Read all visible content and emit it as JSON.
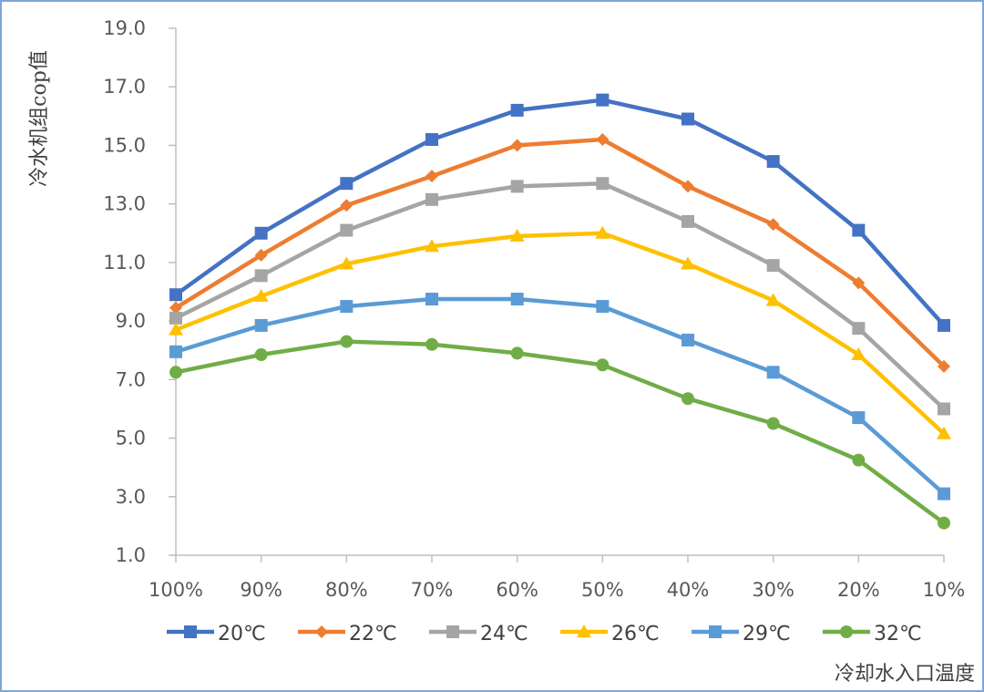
{
  "chart_data": {
    "type": "line",
    "title": "",
    "xlabel": "冷却水入口温度",
    "ylabel": "冷水机组cop值",
    "ylim": [
      1.0,
      19.0
    ],
    "yticks": [
      "1.0",
      "3.0",
      "5.0",
      "7.0",
      "9.0",
      "11.0",
      "13.0",
      "15.0",
      "17.0",
      "19.0"
    ],
    "categories": [
      "100%",
      "90%",
      "80%",
      "70%",
      "60%",
      "50%",
      "40%",
      "30%",
      "20%",
      "10%"
    ],
    "grid": false,
    "legend_position": "bottom",
    "series": [
      {
        "name": "20℃",
        "color": "#4472c4",
        "marker": "square",
        "values": [
          9.9,
          12.0,
          13.7,
          15.2,
          16.2,
          16.55,
          15.9,
          14.45,
          12.1,
          8.85
        ]
      },
      {
        "name": "22℃",
        "color": "#ed7d31",
        "marker": "diamond",
        "values": [
          9.45,
          11.25,
          12.95,
          13.95,
          15.0,
          15.2,
          13.6,
          12.3,
          10.3,
          7.45
        ]
      },
      {
        "name": "24℃",
        "color": "#a5a5a5",
        "marker": "square",
        "values": [
          9.1,
          10.55,
          12.1,
          13.15,
          13.6,
          13.7,
          12.4,
          10.9,
          8.75,
          6.0
        ]
      },
      {
        "name": "26℃",
        "color": "#ffc000",
        "marker": "triangle",
        "values": [
          8.7,
          9.85,
          10.95,
          11.55,
          11.9,
          12.0,
          10.95,
          9.7,
          7.85,
          5.15
        ]
      },
      {
        "name": "29℃",
        "color": "#5b9bd5",
        "marker": "square",
        "values": [
          7.95,
          8.85,
          9.5,
          9.75,
          9.75,
          9.5,
          8.35,
          7.25,
          5.7,
          3.1
        ]
      },
      {
        "name": "32℃",
        "color": "#70ad47",
        "marker": "circle",
        "values": [
          7.25,
          7.85,
          8.3,
          8.2,
          7.9,
          7.5,
          6.35,
          5.5,
          4.25,
          2.1
        ]
      }
    ]
  }
}
